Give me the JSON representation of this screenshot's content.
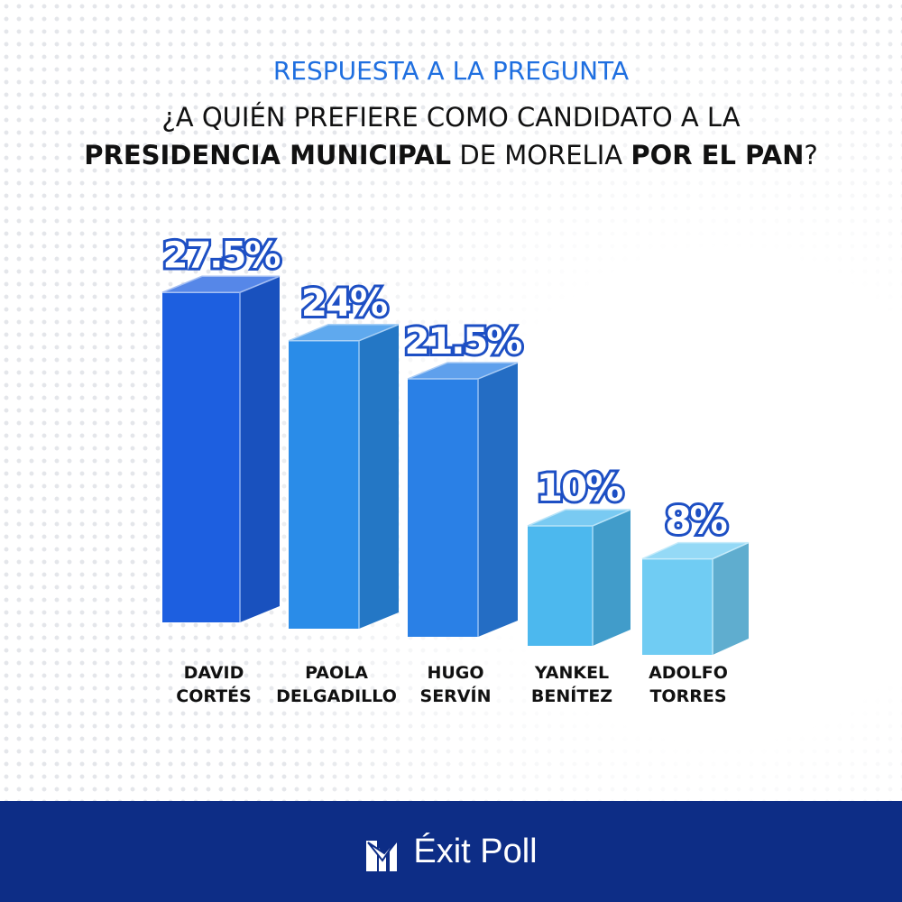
{
  "header": {
    "subtitle": "RESPUESTA A LA PREGUNTA",
    "question_line1": "¿A QUIÉN PREFIERE COMO CANDIDATO A LA",
    "question_line2_bold1": "PRESIDENCIA MUNICIPAL",
    "question_line2_normal": " DE MORELIA ",
    "question_line2_bold2": "POR EL PAN",
    "question_line2_end": "?"
  },
  "chart_data": {
    "type": "bar",
    "style": "3d",
    "categories": [
      "DAVID CORTÉS",
      "PAOLA DELGADILLO",
      "HUGO SERVÍN",
      "YANKEL BENÍTEZ",
      "ADOLFO TORRES"
    ],
    "category_lines": [
      [
        "DAVID",
        "CORTÉS"
      ],
      [
        "PAOLA",
        "DELGADILLO"
      ],
      [
        "HUGO",
        "SERVÍN"
      ],
      [
        "YANKEL",
        "BENÍTEZ"
      ],
      [
        "ADOLFO",
        "TORRES"
      ]
    ],
    "values": [
      27.5,
      24,
      21.5,
      10,
      8
    ],
    "data_labels": [
      "27.5%",
      "24%",
      "21.5%",
      "10%",
      "8%"
    ],
    "colors": [
      "#1d5fe0",
      "#2a8ce8",
      "#2a80e6",
      "#4cb8ee",
      "#70ccf3"
    ],
    "grid": false,
    "legend": "none"
  },
  "footer": {
    "brand": "Éxit Poll",
    "logo": "check-bars-logo",
    "background": "#0d2d86"
  }
}
